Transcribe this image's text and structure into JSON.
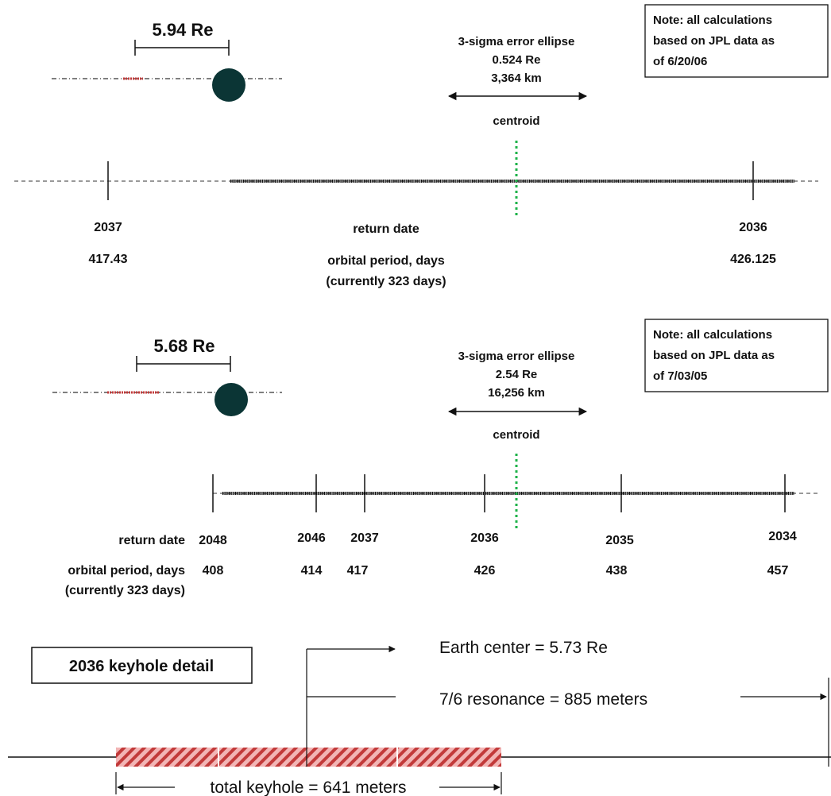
{
  "panel1": {
    "earth_distance": "5.94 Re",
    "ellipse_title": "3-sigma error ellipse",
    "ellipse_re": "0.524 Re",
    "ellipse_km": "3,364 km",
    "centroid_label": "centroid",
    "note_lines": [
      "Note: all calculations",
      "based on JPL data as",
      "of 6/20/06"
    ],
    "row1_label": "return date",
    "row2_label_lines": [
      "orbital period, days",
      "(currently 323 days)"
    ],
    "ticks": [
      {
        "year": "2037",
        "period": "417.43"
      },
      {
        "year": "2036",
        "period": "426.125"
      }
    ]
  },
  "panel2": {
    "earth_distance": "5.68 Re",
    "ellipse_title": "3-sigma error ellipse",
    "ellipse_re": "2.54 Re",
    "ellipse_km": "16,256 km",
    "centroid_label": "centroid",
    "note_lines": [
      "Note: all calculations",
      "based on JPL data as",
      "of 7/03/05"
    ],
    "row1_label": "return date",
    "row2_label_lines": [
      "orbital period, days",
      "(currently 323 days)"
    ],
    "ticks": [
      {
        "year": "2048",
        "period": "408"
      },
      {
        "year": "2046",
        "period": "414"
      },
      {
        "year": "2037",
        "period": "417"
      },
      {
        "year": "2036",
        "period": "426"
      },
      {
        "year": "2035",
        "period": "438"
      },
      {
        "year": "2034",
        "period": "457"
      }
    ]
  },
  "panel3": {
    "box_label": "2036 keyhole detail",
    "earth_center": "Earth center = 5.73 Re",
    "resonance": "7/6 resonance = 885 meters",
    "total_keyhole": "total keyhole = 641 meters"
  },
  "colors": {
    "earth": "#0b3535",
    "centroid": "#1fb34a",
    "hatch": "#c23a3a",
    "hatch_bg": "#f2b5b5",
    "line": "#111111"
  }
}
